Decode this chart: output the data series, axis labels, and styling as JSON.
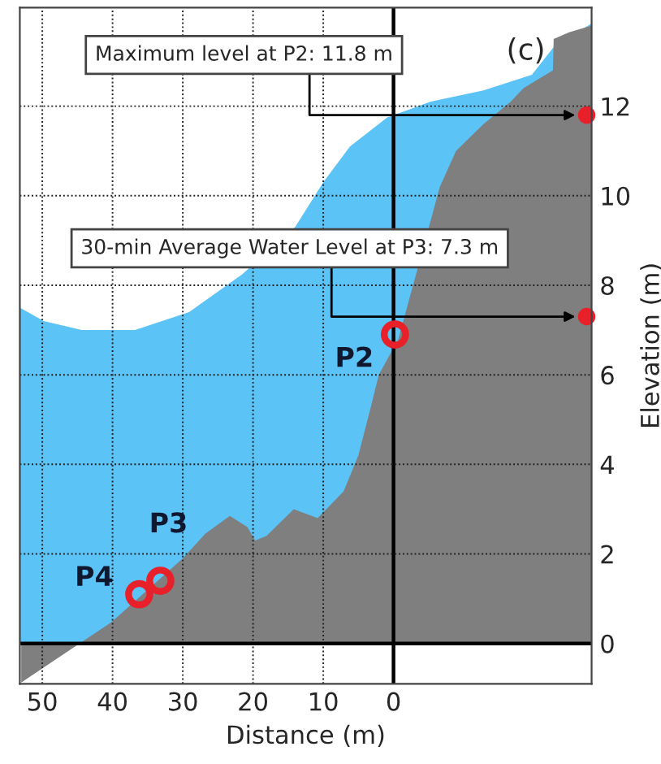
{
  "chart_data": {
    "type": "area",
    "xlabel": "Distance (m)",
    "ylabel": "Elevation (m)",
    "xlim": [
      53.2,
      -28.2
    ],
    "ylim": [
      -0.9,
      14.2
    ],
    "xticks": [
      50,
      40,
      30,
      20,
      10,
      0
    ],
    "yticks": [
      0,
      2,
      4,
      6,
      8,
      10,
      12
    ],
    "grid": true,
    "series": [
      {
        "color": "#5bc3f5",
        "x": [
          53.2,
          49.8,
          44.4,
          36.8,
          29.1,
          21.5,
          14,
          10,
          6.2,
          0.9,
          -5.3,
          -12.8,
          -19.7,
          -22.7,
          -28.2
        ],
        "values": [
          7.5,
          7.2,
          7.0,
          7.0,
          7.4,
          8.25,
          9.3,
          10.3,
          11.1,
          11.75,
          12.1,
          12.35,
          12.7,
          13.3,
          13.85
        ]
      },
      {
        "color": "#7f7f7f",
        "x": [
          53,
          40.2,
          30,
          26.8,
          23.3,
          20.8,
          19.7,
          18.1,
          14.2,
          10.8,
          7.1,
          5.0,
          3.2,
          2.1,
          -0.7,
          -6.6,
          -8.9,
          -12.8,
          -16.7,
          -18.5,
          -22.7,
          -22.8,
          -25,
          -28.2
        ],
        "values": [
          -0.87,
          0.47,
          1.9,
          2.45,
          2.85,
          2.6,
          2.3,
          2.4,
          3.0,
          2.8,
          3.4,
          4.2,
          5.3,
          6.0,
          6.8,
          10.2,
          11.0,
          11.6,
          12.1,
          12.4,
          12.8,
          13.5,
          13.65,
          13.8
        ]
      },
      {
        "type": "scatter",
        "color": "#e8202a",
        "marker": "circle",
        "x": [
          -0.2,
          33.2,
          36.2
        ],
        "values": [
          6.9,
          1.4,
          1.1
        ]
      },
      {
        "type": "scatter",
        "color": "#e8202a",
        "marker": "circle",
        "x": [
          -27.5,
          -27.5
        ],
        "values": [
          11.8,
          7.3
        ]
      }
    ],
    "annotations": [
      {
        "text": "Maximum level at P2: 11.8 m",
        "x": -27.5,
        "y": 11.8
      },
      {
        "text": "30-min Average Water Level at P3: 7.3 m",
        "x": -27.5,
        "y": 7.3
      },
      "P2",
      "P3",
      "P4",
      "(c)"
    ]
  }
}
